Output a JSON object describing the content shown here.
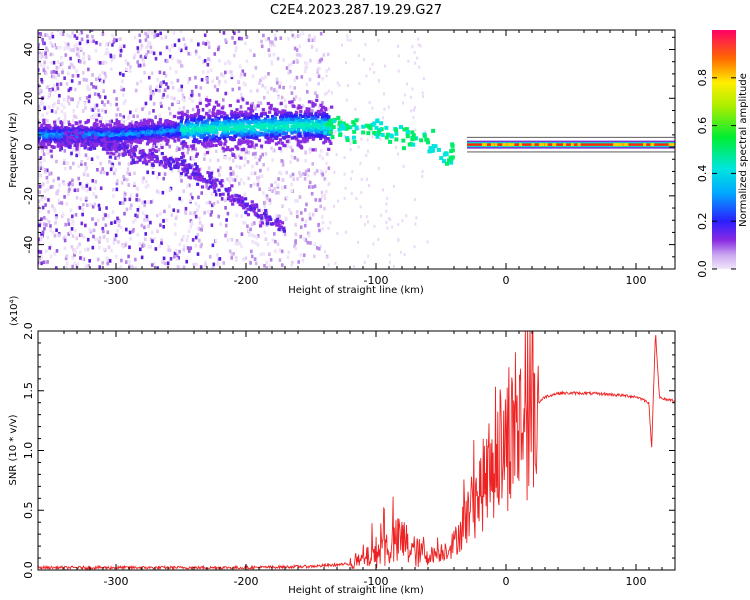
{
  "title": "C2E4.2023.287.19.29.G27",
  "chart_data": [
    {
      "type": "heatmap",
      "xlabel": "Height of straight line (km)",
      "ylabel": "Frequency (Hz)",
      "xlim": [
        -360,
        130
      ],
      "ylim": [
        -50,
        48
      ],
      "xticks": [
        -300,
        -200,
        -100,
        0,
        100
      ],
      "yticks": [
        -40,
        -20,
        0,
        20,
        40
      ],
      "colorbar": {
        "label": "Normalized spectral amplitude",
        "range": [
          0.0,
          1.0
        ],
        "ticks": [
          "0.0",
          "0.2",
          "0.4",
          "0.6",
          "0.8"
        ]
      },
      "traces": [
        {
          "x": [
            -360,
            -300,
            -250,
            -210,
            -150,
            -100,
            -70,
            -45,
            -35,
            -20,
            0,
            50,
            130
          ],
          "y": [
            5,
            5,
            7,
            8,
            9,
            7,
            4,
            -5,
            -1,
            0,
            1,
            1,
            1
          ]
        },
        {
          "x": [
            -340,
            -300,
            -250,
            -220,
            -200,
            -180,
            -170
          ],
          "y": [
            4,
            0,
            -8,
            -16,
            -24,
            -30,
            -33
          ]
        }
      ]
    },
    {
      "type": "line",
      "xlabel": "Height of straight line (km)",
      "ylabel": "SNR (10 * v/v)",
      "multiplier": "(x10⁴)",
      "xlim": [
        -360,
        130
      ],
      "ylim": [
        0.0,
        2.0
      ],
      "xticks": [
        -300,
        -200,
        -100,
        0,
        100
      ],
      "yticks": [
        "0.0",
        "0.5",
        "1.0",
        "1.5",
        "2.0"
      ],
      "line_color": "#ee2222",
      "series": [
        {
          "x": [
            -360,
            -300,
            -250,
            -200,
            -150,
            -120,
            -110,
            -100,
            -90,
            -80,
            -70,
            -60,
            -50,
            -40,
            -30,
            -20,
            -10,
            0,
            10,
            20,
            30,
            40,
            60,
            80,
            100,
            105,
            110,
            112,
            115,
            118,
            120,
            130
          ],
          "values": [
            0.02,
            0.02,
            0.02,
            0.02,
            0.03,
            0.05,
            0.08,
            0.15,
            0.2,
            0.25,
            0.15,
            0.12,
            0.15,
            0.22,
            0.45,
            0.65,
            0.9,
            1.05,
            1.2,
            1.35,
            1.45,
            1.48,
            1.48,
            1.47,
            1.45,
            1.43,
            1.4,
            1.0,
            2.0,
            1.45,
            1.43,
            1.42
          ]
        }
      ]
    }
  ]
}
